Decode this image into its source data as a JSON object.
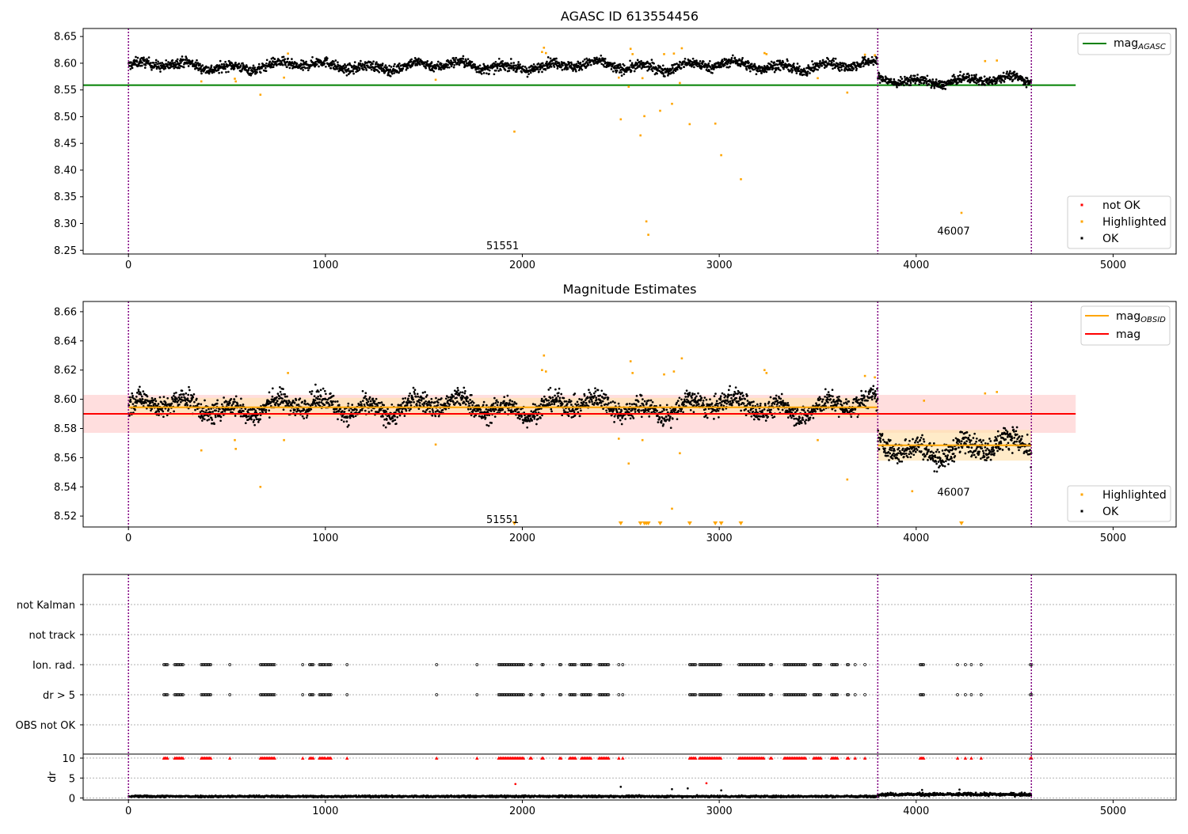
{
  "chart_data": [
    {
      "type": "scatter",
      "title": "AGASC ID 613554456",
      "xlim": [
        -230,
        5320
      ],
      "ylim": [
        8.243,
        8.665
      ],
      "x_ticks": [
        0,
        1000,
        2000,
        3000,
        4000,
        5000
      ],
      "y_ticks": [
        8.25,
        8.3,
        8.35,
        8.4,
        8.45,
        8.5,
        8.55,
        8.6,
        8.65
      ],
      "y_tick_labels": [
        "8.25",
        "8.30",
        "8.35",
        "8.40",
        "8.45",
        "8.50",
        "8.55",
        "8.60",
        "8.65"
      ],
      "obsid_boundaries": [
        0,
        3805,
        4585
      ],
      "obsid_labels": [
        {
          "text": "51551",
          "x": 1900,
          "y": 8.259
        },
        {
          "text": "46007",
          "x": 4190,
          "y": 8.287
        }
      ],
      "legend_upper": [
        {
          "name": "mag_AGASC",
          "color": "#008000"
        }
      ],
      "legend_lower": [
        {
          "name": "not OK",
          "color": "#ff0000"
        },
        {
          "name": "Highlighted",
          "color": "#ffa500"
        },
        {
          "name": "OK",
          "color": "#000000"
        }
      ],
      "mag_agasc": {
        "value": 8.559,
        "x_range": [
          -230,
          4810
        ]
      },
      "ok_segments": [
        {
          "x_start": 0,
          "x_end": 3805,
          "center": 8.595,
          "spread": 0.012
        },
        {
          "x_start": 3805,
          "x_end": 4585,
          "center": 8.568,
          "spread": 0.011
        }
      ],
      "highlighted_points": [
        {
          "x": 370,
          "y": 8.566
        },
        {
          "x": 540,
          "y": 8.571
        },
        {
          "x": 545,
          "y": 8.566
        },
        {
          "x": 670,
          "y": 8.541
        },
        {
          "x": 790,
          "y": 8.573
        },
        {
          "x": 810,
          "y": 8.618
        },
        {
          "x": 1560,
          "y": 8.569
        },
        {
          "x": 1960,
          "y": 8.472
        },
        {
          "x": 2100,
          "y": 8.621
        },
        {
          "x": 2110,
          "y": 8.629
        },
        {
          "x": 2120,
          "y": 8.619
        },
        {
          "x": 2490,
          "y": 8.573
        },
        {
          "x": 2500,
          "y": 8.495
        },
        {
          "x": 2540,
          "y": 8.556
        },
        {
          "x": 2550,
          "y": 8.627
        },
        {
          "x": 2560,
          "y": 8.617
        },
        {
          "x": 2600,
          "y": 8.465
        },
        {
          "x": 2610,
          "y": 8.572
        },
        {
          "x": 2620,
          "y": 8.501
        },
        {
          "x": 2630,
          "y": 8.304
        },
        {
          "x": 2640,
          "y": 8.279
        },
        {
          "x": 2700,
          "y": 8.511
        },
        {
          "x": 2720,
          "y": 8.617
        },
        {
          "x": 2760,
          "y": 8.524
        },
        {
          "x": 2770,
          "y": 8.618
        },
        {
          "x": 2800,
          "y": 8.563
        },
        {
          "x": 2810,
          "y": 8.628
        },
        {
          "x": 2850,
          "y": 8.486
        },
        {
          "x": 2980,
          "y": 8.487
        },
        {
          "x": 3010,
          "y": 8.428
        },
        {
          "x": 3110,
          "y": 8.383
        },
        {
          "x": 3230,
          "y": 8.619
        },
        {
          "x": 3240,
          "y": 8.617
        },
        {
          "x": 3500,
          "y": 8.572
        },
        {
          "x": 3650,
          "y": 8.545
        },
        {
          "x": 3740,
          "y": 8.616
        },
        {
          "x": 3790,
          "y": 8.615
        },
        {
          "x": 4230,
          "y": 8.32
        },
        {
          "x": 4350,
          "y": 8.604
        },
        {
          "x": 4410,
          "y": 8.605
        }
      ]
    },
    {
      "type": "scatter",
      "title": "Magnitude Estimates",
      "xlim": [
        -230,
        5320
      ],
      "ylim": [
        8.5125,
        8.667
      ],
      "x_ticks": [
        0,
        1000,
        2000,
        3000,
        4000,
        5000
      ],
      "y_ticks": [
        8.52,
        8.54,
        8.56,
        8.58,
        8.6,
        8.62,
        8.64,
        8.66
      ],
      "y_tick_labels": [
        "8.52",
        "8.54",
        "8.56",
        "8.58",
        "8.60",
        "8.62",
        "8.64",
        "8.66"
      ],
      "obsid_boundaries": [
        0,
        3805,
        4585
      ],
      "obsid_labels": [
        {
          "text": "51551",
          "x": 1900,
          "y": 8.518
        },
        {
          "text": "46007",
          "x": 4190,
          "y": 8.5365
        }
      ],
      "legend_upper": [
        {
          "name": "mag_OBSID",
          "color": "#ffa500"
        },
        {
          "name": "mag",
          "color": "#ff0000"
        }
      ],
      "legend_lower": [
        {
          "name": "Highlighted",
          "color": "#ffa500"
        },
        {
          "name": "OK",
          "color": "#000000"
        }
      ],
      "mag": {
        "value": 8.59,
        "band": [
          8.577,
          8.603
        ],
        "x_range": [
          -230,
          4810
        ],
        "color": "#ff0000"
      },
      "mag_obsid": [
        {
          "x_start": 0,
          "x_end": 3805,
          "value": 8.5945,
          "band": [
            8.588,
            8.601
          ]
        },
        {
          "x_start": 3805,
          "x_end": 4585,
          "value": 8.5685,
          "band": [
            8.558,
            8.579
          ]
        }
      ],
      "ok_segments": [
        {
          "x_start": 0,
          "x_end": 3805,
          "center": 8.595,
          "spread": 0.009
        },
        {
          "x_start": 3805,
          "x_end": 4585,
          "center": 8.567,
          "spread": 0.01
        }
      ],
      "highlighted_points": [
        {
          "x": 370,
          "y": 8.565
        },
        {
          "x": 540,
          "y": 8.572
        },
        {
          "x": 545,
          "y": 8.566
        },
        {
          "x": 670,
          "y": 8.54
        },
        {
          "x": 790,
          "y": 8.572
        },
        {
          "x": 810,
          "y": 8.618
        },
        {
          "x": 1560,
          "y": 8.569
        },
        {
          "x": 2100,
          "y": 8.62
        },
        {
          "x": 2110,
          "y": 8.63
        },
        {
          "x": 2120,
          "y": 8.619
        },
        {
          "x": 2490,
          "y": 8.573
        },
        {
          "x": 2540,
          "y": 8.556
        },
        {
          "x": 2550,
          "y": 8.626
        },
        {
          "x": 2560,
          "y": 8.618
        },
        {
          "x": 2610,
          "y": 8.572
        },
        {
          "x": 2720,
          "y": 8.617
        },
        {
          "x": 2760,
          "y": 8.525
        },
        {
          "x": 2770,
          "y": 8.619
        },
        {
          "x": 2800,
          "y": 8.563
        },
        {
          "x": 2810,
          "y": 8.628
        },
        {
          "x": 3230,
          "y": 8.62
        },
        {
          "x": 3240,
          "y": 8.618
        },
        {
          "x": 3500,
          "y": 8.572
        },
        {
          "x": 3650,
          "y": 8.545
        },
        {
          "x": 3740,
          "y": 8.616
        },
        {
          "x": 3790,
          "y": 8.615
        },
        {
          "x": 3980,
          "y": 8.537
        },
        {
          "x": 4040,
          "y": 8.599
        },
        {
          "x": 4350,
          "y": 8.604
        },
        {
          "x": 4410,
          "y": 8.605
        }
      ],
      "below_range_markers": [
        1960,
        2500,
        2600,
        2620,
        2630,
        2640,
        2700,
        2850,
        2980,
        3010,
        3110,
        4230
      ]
    },
    {
      "type": "scatter",
      "xlim": [
        -230,
        5320
      ],
      "x_ticks": [
        0,
        1000,
        2000,
        3000,
        4000,
        5000
      ],
      "obsid_boundaries": [
        0,
        3805,
        4585
      ],
      "flag_rows": [
        "not Kalman",
        "not track",
        "Ion. rad.",
        "dr > 5",
        "OBS not OK"
      ],
      "flag_clusters": [
        [
          180,
          200
        ],
        [
          235,
          280
        ],
        [
          370,
          420
        ],
        [
          515,
          520
        ],
        [
          670,
          745
        ],
        [
          885,
          890
        ],
        [
          920,
          940
        ],
        [
          970,
          1000
        ],
        [
          1010,
          1030
        ],
        [
          1110,
          1115
        ],
        [
          1565,
          1570
        ],
        [
          1770,
          1775
        ],
        [
          1880,
          2010
        ],
        [
          2040,
          2050
        ],
        [
          2100,
          2110
        ],
        [
          2190,
          2200
        ],
        [
          2240,
          2270
        ],
        [
          2300,
          2350
        ],
        [
          2390,
          2440
        ],
        [
          2490,
          2495
        ],
        [
          2510,
          2515
        ],
        [
          2850,
          2880
        ],
        [
          2900,
          3010
        ],
        [
          3100,
          3230
        ],
        [
          3260,
          3270
        ],
        [
          3330,
          3440
        ],
        [
          3480,
          3520
        ],
        [
          3570,
          3600
        ],
        [
          3650,
          3660
        ],
        [
          3690,
          3695
        ],
        [
          3740,
          3745
        ],
        [
          4020,
          4040
        ],
        [
          4210,
          4215
        ],
        [
          4250,
          4255
        ],
        [
          4280,
          4285
        ],
        [
          4330,
          4335
        ],
        [
          4580,
          4590
        ]
      ],
      "dr": {
        "ylabel": "dr",
        "ylim": [
          -0.5,
          11
        ],
        "y_ticks": [
          0,
          5,
          10
        ],
        "y_tick_labels": [
          "0",
          "5",
          "10"
        ],
        "clip_value": 10,
        "ok_segments": [
          {
            "x_start": 0,
            "x_end": 3805,
            "center": 0.4,
            "spread": 0.3
          },
          {
            "x_start": 3805,
            "x_end": 4585,
            "center": 0.9,
            "spread": 0.5
          }
        ],
        "red_points": [
          {
            "x": 1965,
            "y": 3.5
          },
          {
            "x": 2935,
            "y": 3.7
          }
        ],
        "black_outliers": [
          {
            "x": 2500,
            "y": 2.8
          },
          {
            "x": 2760,
            "y": 2.2
          },
          {
            "x": 2840,
            "y": 2.4
          },
          {
            "x": 3010,
            "y": 1.9
          },
          {
            "x": 4030,
            "y": 2.0
          },
          {
            "x": 4220,
            "y": 2.1
          }
        ]
      }
    }
  ],
  "colors": {
    "ok": "#000000",
    "highlighted": "#ffa500",
    "not_ok": "#ff0000",
    "agasc_line": "#008000",
    "mag_band": "#ffb6b6",
    "obsid_band": "#ffe3b0",
    "boundary": "#800080",
    "flag_grid": "#b0b0b0"
  }
}
